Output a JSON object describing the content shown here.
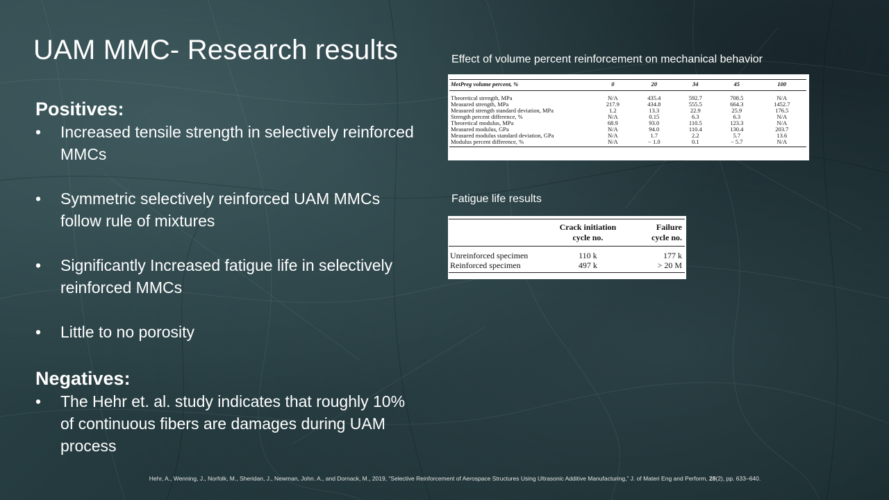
{
  "title": "UAM MMC- Research results",
  "positives": {
    "heading": "Positives:",
    "items": [
      "Increased tensile strength in selectively reinforced MMCs",
      "Symmetric selectively reinforced UAM MMCs follow rule of mixtures",
      "Significantly Increased fatigue life in selectively reinforced MMCs",
      "Little to no porosity"
    ]
  },
  "negatives": {
    "heading": "Negatives:",
    "items": [
      "The Hehr et. al. study indicates that roughly 10% of continuous fibers are damages during UAM process"
    ]
  },
  "bullet_glyph": "•",
  "table1": {
    "caption": "Effect of volume percent reinforcement on mechanical behavior",
    "headers": [
      "MetPreg volume percent, %",
      "0",
      "20",
      "34",
      "45",
      "100"
    ],
    "rows": [
      [
        "Theoretical strength, MPa",
        "N/A",
        "435.4",
        "592.7",
        "708.5",
        "N/A"
      ],
      [
        "Measured strength, MPa",
        "217.9",
        "434.8",
        "555.5",
        "664.3",
        "1452.7"
      ],
      [
        "Measured strength standard deviation, MPa",
        "1.2",
        "13.3",
        "22.9",
        "25.9",
        "176.5"
      ],
      [
        "Strength percent difference, %",
        "N/A",
        "0.15",
        "6.3",
        "6.3",
        "N/A"
      ],
      [
        "Theoretical modulus, MPa",
        "68.9",
        "93.0",
        "110.5",
        "123.3",
        "N/A"
      ],
      [
        "Measured modulus, GPa",
        "N/A",
        "94.0",
        "110.4",
        "130.4",
        "203.7"
      ],
      [
        "Measured modulus standard deviation, GPa",
        "N/A",
        "1.7",
        "2.2",
        "5.7",
        "13.6"
      ],
      [
        "Modulus percent difference, %",
        "N/A",
        "− 1.0",
        "0.1",
        "− 5.7",
        "N/A"
      ]
    ]
  },
  "table2": {
    "caption": "Fatigue life results",
    "headers": [
      {
        "line1": "",
        "line2": ""
      },
      {
        "line1": "Crack initiation",
        "line2": "cycle no."
      },
      {
        "line1": "Failure",
        "line2": "cycle no."
      }
    ],
    "rows": [
      [
        "Unreinforced specimen",
        "110 k",
        "177 k"
      ],
      [
        "Reinforced specimen",
        "497 k",
        "> 20 M"
      ]
    ]
  },
  "reference": {
    "before_volume": "Hehr, A., Wenning, J., Norfolk, M., Sheridan, J., Newman, John. A., and Dornack, M., 2019, “Selective Reinforcement of Aerospace Structures Using Ultrasonic Additive Manufacturing,” J. of Materi Eng and Perform, ",
    "volume": "28",
    "after_volume": "(2), pp. 633–640."
  }
}
